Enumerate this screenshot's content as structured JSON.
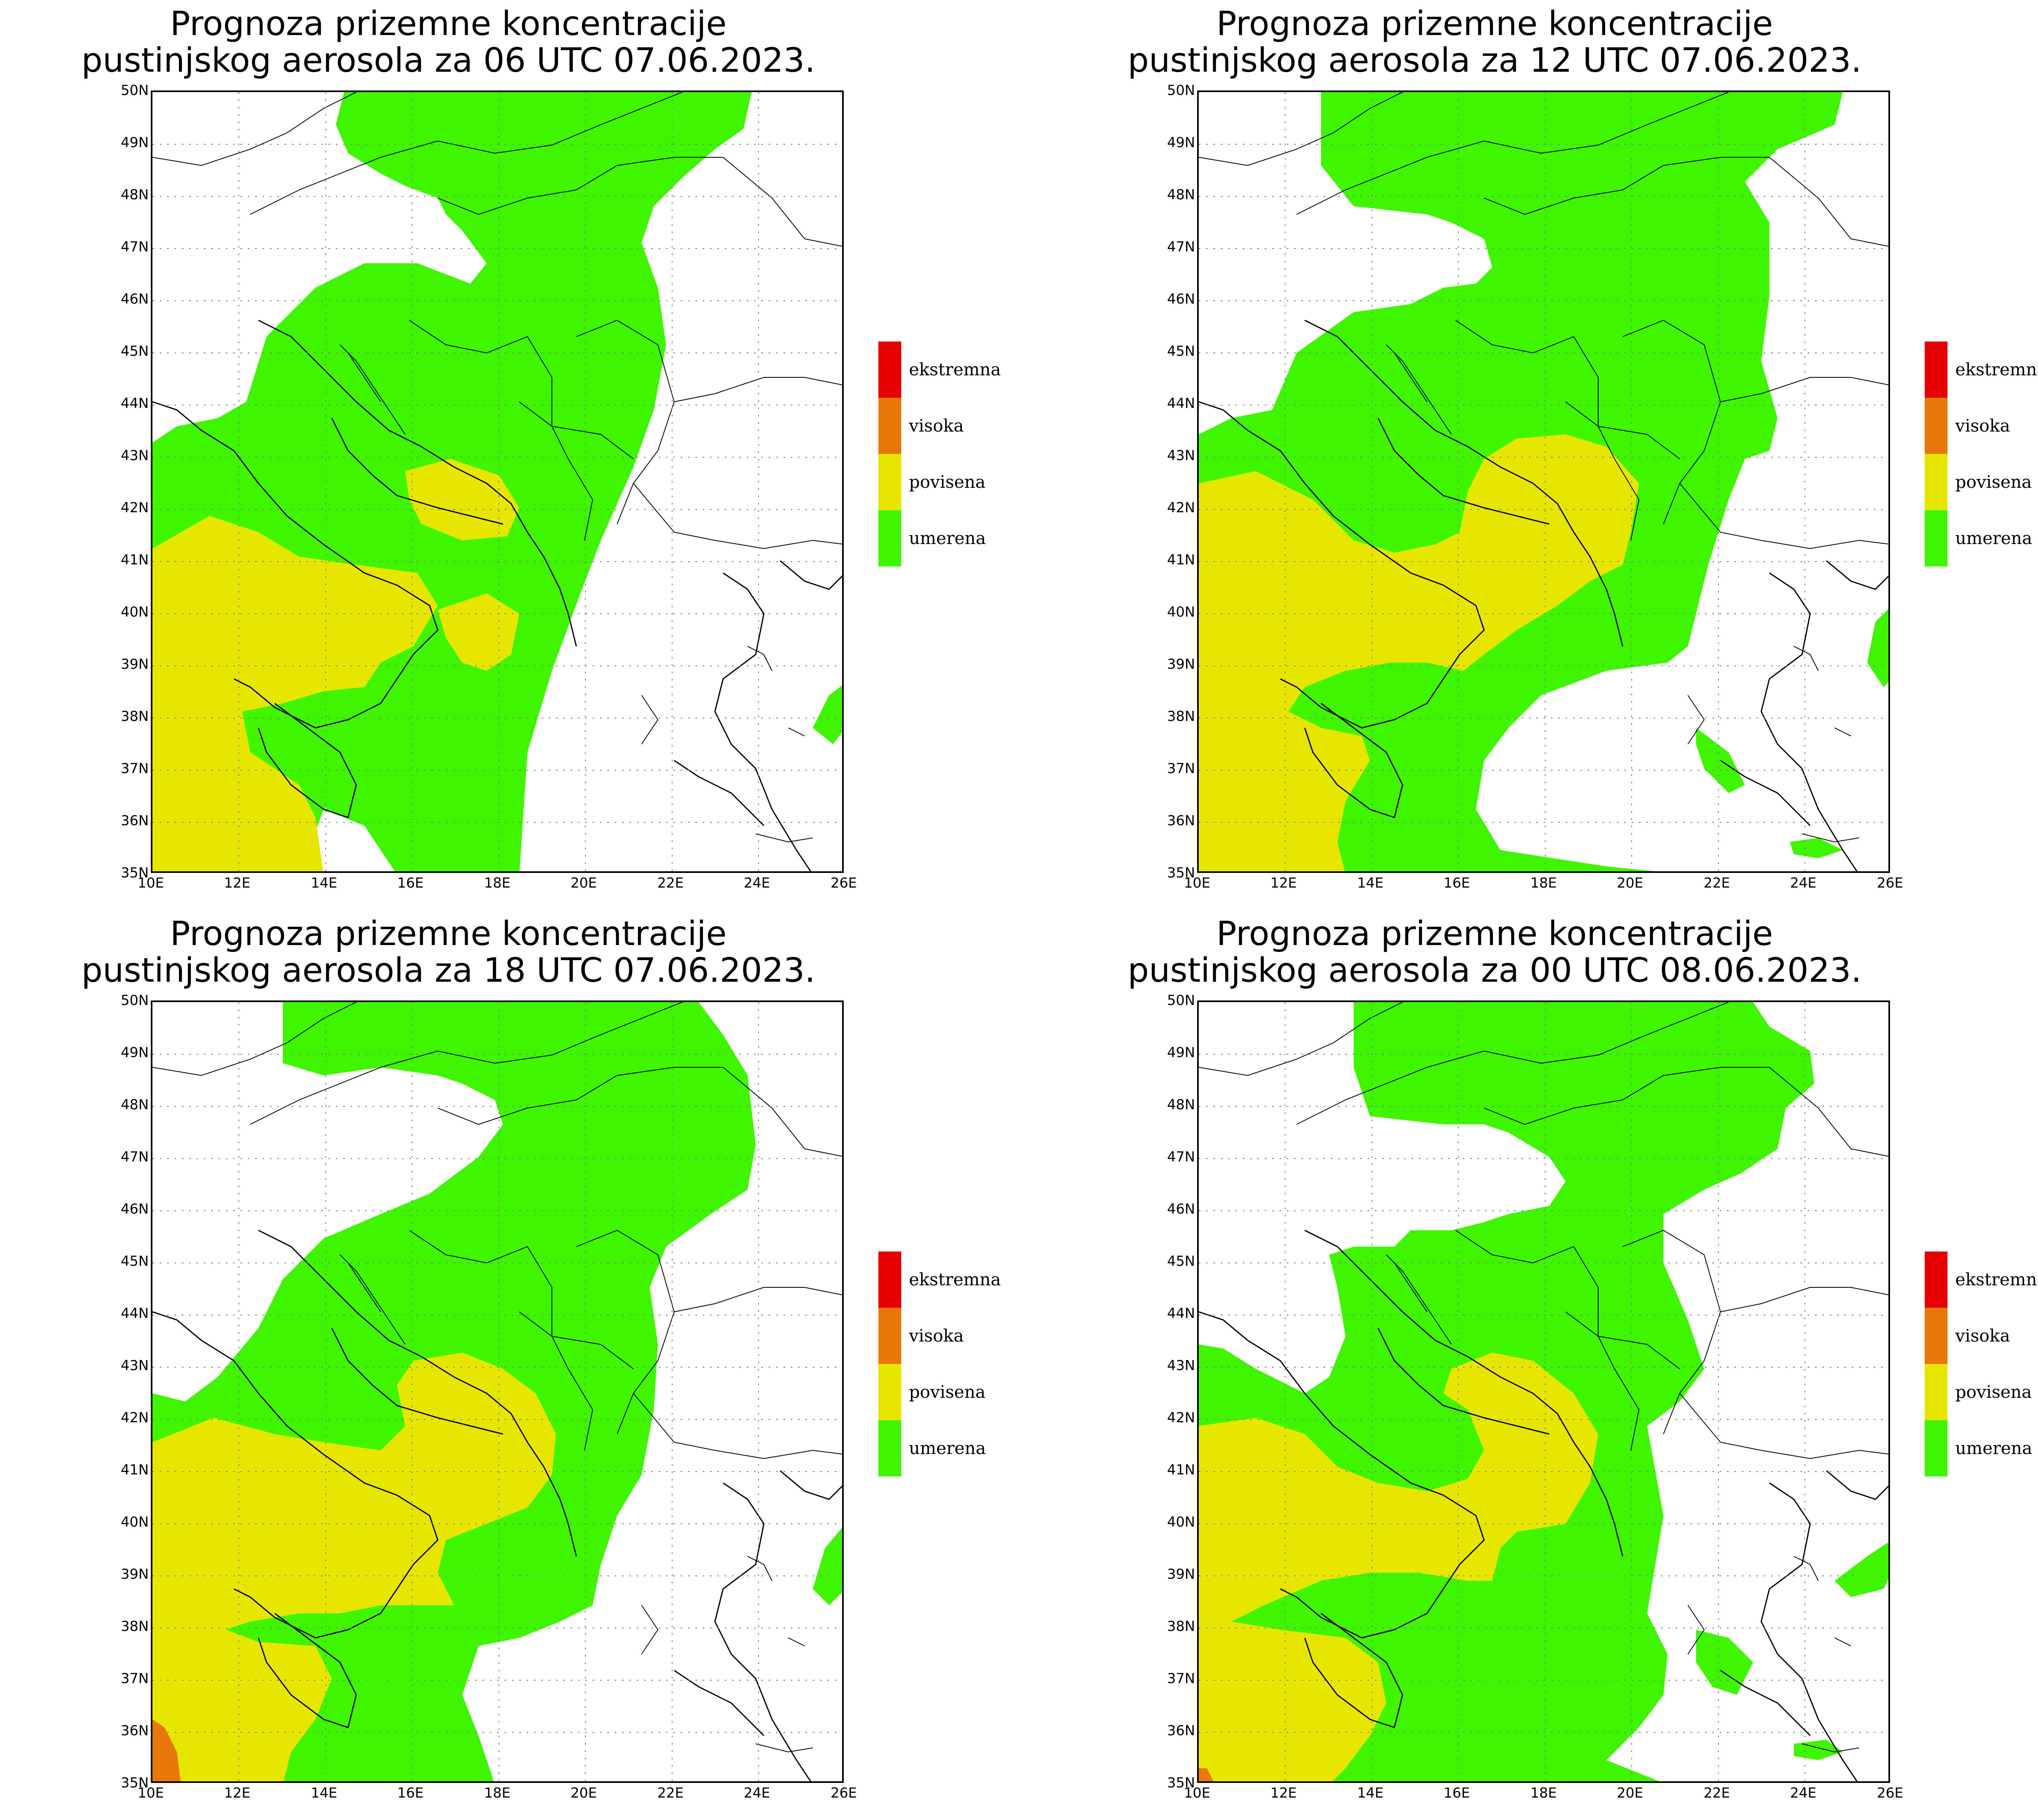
{
  "colors": {
    "umerena": "#3ff500",
    "povisena": "#e6e600",
    "visoka": "#e8780a",
    "ekstremna": "#e60000",
    "coast": "#000000",
    "grid": "#777777"
  },
  "map": {
    "lat_labels": [
      "50N",
      "49N",
      "48N",
      "47N",
      "46N",
      "45N",
      "44N",
      "43N",
      "42N",
      "41N",
      "40N",
      "39N",
      "38N",
      "37N",
      "36N",
      "35N"
    ],
    "lon_labels": [
      "10E",
      "12E",
      "14E",
      "16E",
      "18E",
      "20E",
      "22E",
      "24E",
      "26E"
    ],
    "legend": [
      {
        "key": "ekstremna",
        "label": "ekstremna",
        "color": "#e60000"
      },
      {
        "key": "visoka",
        "label": "visoka",
        "color": "#e8780a"
      },
      {
        "key": "povisena",
        "label": "povisena",
        "color": "#e6e600"
      },
      {
        "key": "umerena",
        "label": "umerena",
        "color": "#3ff500"
      }
    ]
  },
  "panels": [
    {
      "title_line1": "Prognoza prizemne koncentracije",
      "title_line2": "pustinjskog aerosola za 06 UTC 07.06.2023."
    },
    {
      "title_line1": "Prognoza prizemne koncentracije",
      "title_line2": "pustinjskog aerosola za 12 UTC 07.06.2023."
    },
    {
      "title_line1": "Prognoza prizemne koncentracije",
      "title_line2": "pustinjskog aerosola za 18 UTC 07.06.2023."
    },
    {
      "title_line1": "Prognoza prizemne koncentracije",
      "title_line2": "pustinjskog aerosola za 00 UTC 08.06.2023."
    }
  ]
}
